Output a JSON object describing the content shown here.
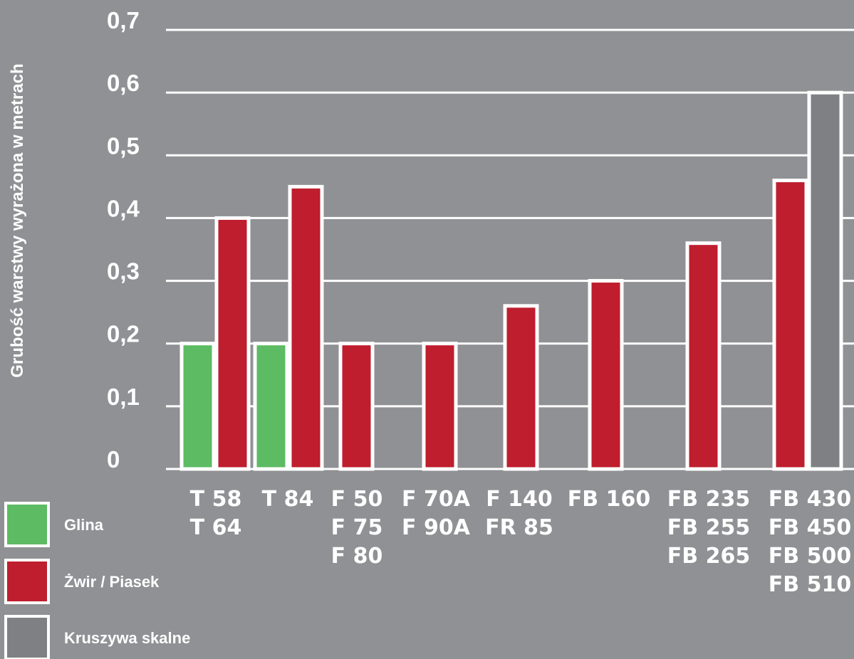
{
  "chart_data": {
    "type": "bar",
    "ylabel": "Grubość warstwy wyrażona w metrach",
    "xlabel": "",
    "ylim": [
      0,
      0.7
    ],
    "yticks": [
      "0",
      "0,1",
      "0,2",
      "0,3",
      "0,4",
      "0,5",
      "0,6",
      "0,7"
    ],
    "grid": true,
    "legend_position": "bottom-left",
    "categories": [
      [
        "T 58",
        "T 64"
      ],
      [
        "T 84"
      ],
      [
        "F 50",
        "F 75",
        "F 80"
      ],
      [
        "F 70A",
        "F 90A"
      ],
      [
        "F 140",
        "FR 85"
      ],
      [
        "FB 160"
      ],
      [
        "FB 235",
        "FB 255",
        "FB 265"
      ],
      [
        "FB 430",
        "FB 450",
        "FB 500",
        "FB 510"
      ]
    ],
    "series": [
      {
        "name": "Glina",
        "color": "#5dbb63",
        "values": [
          0.2,
          0.2,
          null,
          null,
          null,
          null,
          null,
          null
        ]
      },
      {
        "name": "Żwir / Piasek",
        "color": "#be1e2d",
        "values": [
          0.4,
          0.45,
          0.2,
          0.2,
          0.26,
          0.3,
          0.36,
          0.46
        ]
      },
      {
        "name": "Kruszywa skalne",
        "color": "#7f8084",
        "values": [
          null,
          null,
          null,
          null,
          null,
          null,
          null,
          0.6
        ]
      }
    ]
  }
}
